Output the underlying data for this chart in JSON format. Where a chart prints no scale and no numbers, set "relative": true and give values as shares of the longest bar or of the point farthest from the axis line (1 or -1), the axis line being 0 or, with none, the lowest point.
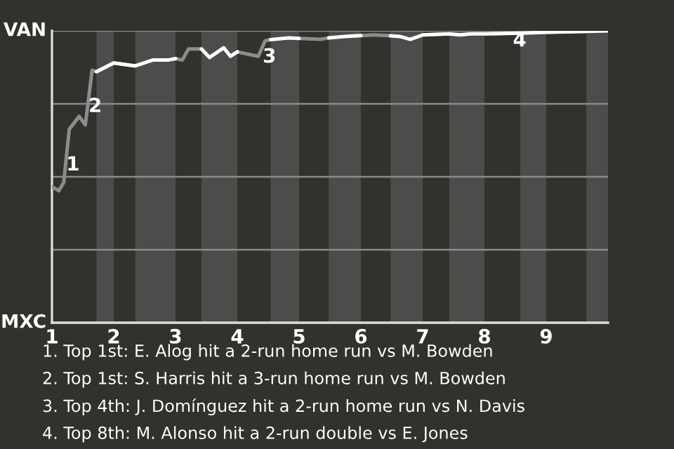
{
  "chart_data": {
    "type": "line",
    "relative": true,
    "x": [
      1,
      1.11,
      1.19,
      1.28,
      1.44,
      1.54,
      1.65,
      1.72,
      2,
      2.35,
      2.63,
      2.88,
      3,
      3.11,
      3.21,
      3.42,
      3.55,
      3.78,
      3.89,
      4,
      4.34,
      4.45,
      4.54,
      4.83,
      5,
      5.35,
      5.48,
      5.74,
      6,
      6.23,
      6.48,
      6.63,
      6.8,
      7,
      7.43,
      7.6,
      7.78,
      8,
      8.58,
      9,
      9.65,
      10
    ],
    "series": [
      {
        "color": "#8c8c8c",
        "values": [
          0.466,
          0.452,
          0.48,
          0.663,
          0.707,
          0.678,
          0.865,
          0.86,
          0.89,
          0.88,
          null,
          null,
          0.905,
          0.9,
          0.938,
          0.938,
          null,
          null,
          null,
          0.928,
          0.913,
          0.966,
          0.97,
          null,
          0.974,
          0.971,
          0.976,
          null,
          0.984,
          0.986,
          0.983,
          null,
          null,
          0.986,
          0.99,
          null,
          null,
          0.99,
          0.992,
          0.995,
          0.998,
          null
        ]
      },
      {
        "color": "#ffffff",
        "values": [
          null,
          null,
          null,
          null,
          null,
          null,
          null,
          0.86,
          0.89,
          0.88,
          0.9,
          0.9,
          0.905,
          null,
          null,
          0.938,
          0.909,
          0.942,
          0.913,
          0.928,
          null,
          null,
          0.97,
          0.976,
          0.974,
          null,
          0.976,
          0.981,
          0.984,
          null,
          0.983,
          0.981,
          0.971,
          0.986,
          0.99,
          0.986,
          0.99,
          0.99,
          0.992,
          0.995,
          0.998,
          1
        ]
      }
    ],
    "xlim": [
      1,
      10
    ],
    "xticks": [
      1,
      2,
      3,
      4,
      5,
      6,
      7,
      8,
      9
    ],
    "marker": "none",
    "line_style": "solid",
    "grid": "y",
    "bands": [
      {
        "axis": "x",
        "from": 1.72,
        "to": 2,
        "color": "#4d4c4a"
      },
      {
        "axis": "x",
        "from": 2.35,
        "to": 3,
        "color": "#4d4c4a"
      },
      {
        "axis": "x",
        "from": 3.42,
        "to": 4,
        "color": "#4d4c4a"
      },
      {
        "axis": "x",
        "from": 4.54,
        "to": 5,
        "color": "#4d4c4a"
      },
      {
        "axis": "x",
        "from": 5.48,
        "to": 6,
        "color": "#4d4c4a"
      },
      {
        "axis": "x",
        "from": 6.48,
        "to": 7,
        "color": "#4d4c4a"
      },
      {
        "axis": "x",
        "from": 7.43,
        "to": 8,
        "color": "#4d4c4a"
      },
      {
        "axis": "x",
        "from": 8.58,
        "to": 9,
        "color": "#4d4c4a"
      },
      {
        "axis": "x",
        "from": 9.65,
        "to": 10,
        "color": "#4d4c4a"
      }
    ],
    "annotations": [
      "VAN",
      "MXC",
      {
        "text": "1",
        "x": 1.34,
        "y": 0.54
      },
      {
        "text": "2",
        "x": 1.7,
        "y": 0.74
      },
      {
        "text": "3",
        "x": 4.52,
        "y": 0.91
      },
      {
        "text": "4",
        "x": 8.57,
        "y": 0.965
      },
      "1. Top 1st: E. Alog hit a 2-run home run vs M. Bowden",
      "2. Top 1st: S. Harris hit a 3-run home run vs M. Bowden",
      "3. Top 4th: J. Domínguez hit a 2-run home run vs N. Davis",
      "4. Top 8th: M. Alonso hit a 2-run double vs E. Jones"
    ]
  }
}
